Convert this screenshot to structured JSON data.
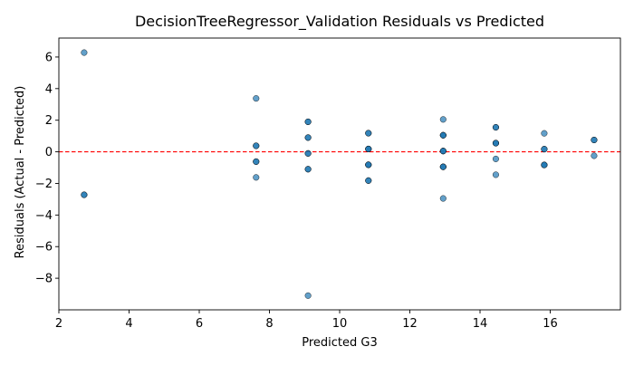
{
  "chart_data": {
    "type": "scatter",
    "title": "DecisionTreeRegressor_Validation Residuals vs Predicted",
    "xlabel": "Predicted G3",
    "ylabel": "Residuals (Actual - Predicted)",
    "xlim": [
      2.0,
      18.0
    ],
    "ylim": [
      -10.0,
      7.2
    ],
    "xticks": [
      2,
      4,
      6,
      8,
      10,
      12,
      14,
      16
    ],
    "yticks": [
      6,
      4,
      2,
      0,
      -2,
      -4,
      -6,
      -8
    ],
    "xtick_labels": [
      "2",
      "4",
      "6",
      "8",
      "10",
      "12",
      "14",
      "16"
    ],
    "ytick_labels": [
      "6",
      "4",
      "2",
      "0",
      "−2",
      "−4",
      "−6",
      "−8"
    ],
    "reference_line": {
      "y": 0,
      "color": "#ff0000",
      "style": "dashed"
    },
    "point_color": "#1f77b4",
    "grid": false,
    "points": [
      {
        "x": 2.72,
        "y": 6.28
      },
      {
        "x": 2.72,
        "y": -2.72
      },
      {
        "x": 2.72,
        "y": -2.72
      },
      {
        "x": 7.62,
        "y": 3.38
      },
      {
        "x": 7.62,
        "y": 0.38
      },
      {
        "x": 7.62,
        "y": 0.38
      },
      {
        "x": 7.62,
        "y": -0.62
      },
      {
        "x": 7.62,
        "y": -0.62
      },
      {
        "x": 7.62,
        "y": -1.62
      },
      {
        "x": 9.1,
        "y": 1.9
      },
      {
        "x": 9.1,
        "y": 1.9
      },
      {
        "x": 9.1,
        "y": 0.9
      },
      {
        "x": 9.1,
        "y": 0.9
      },
      {
        "x": 9.1,
        "y": -0.1
      },
      {
        "x": 9.1,
        "y": -0.1
      },
      {
        "x": 9.1,
        "y": -1.1
      },
      {
        "x": 9.1,
        "y": -1.1
      },
      {
        "x": 9.1,
        "y": -9.1
      },
      {
        "x": 10.82,
        "y": 1.18
      },
      {
        "x": 10.82,
        "y": 1.18
      },
      {
        "x": 10.82,
        "y": 0.18
      },
      {
        "x": 10.82,
        "y": 0.18
      },
      {
        "x": 10.82,
        "y": 0.18
      },
      {
        "x": 10.82,
        "y": -0.82
      },
      {
        "x": 10.82,
        "y": -0.82
      },
      {
        "x": 10.82,
        "y": -0.82
      },
      {
        "x": 10.82,
        "y": -1.82
      },
      {
        "x": 10.82,
        "y": -1.82
      },
      {
        "x": 12.95,
        "y": 2.05
      },
      {
        "x": 12.95,
        "y": 1.05
      },
      {
        "x": 12.95,
        "y": 1.05
      },
      {
        "x": 12.95,
        "y": 1.05
      },
      {
        "x": 12.95,
        "y": 0.05
      },
      {
        "x": 12.95,
        "y": 0.05
      },
      {
        "x": 12.95,
        "y": 0.05
      },
      {
        "x": 12.95,
        "y": -0.95
      },
      {
        "x": 12.95,
        "y": -0.95
      },
      {
        "x": 12.95,
        "y": -0.95
      },
      {
        "x": 12.95,
        "y": -2.95
      },
      {
        "x": 14.45,
        "y": 1.55
      },
      {
        "x": 14.45,
        "y": 1.55
      },
      {
        "x": 14.45,
        "y": 0.55
      },
      {
        "x": 14.45,
        "y": 0.55
      },
      {
        "x": 14.45,
        "y": 0.55
      },
      {
        "x": 14.45,
        "y": -0.45
      },
      {
        "x": 14.45,
        "y": -1.45
      },
      {
        "x": 15.83,
        "y": 1.17
      },
      {
        "x": 15.83,
        "y": 0.17
      },
      {
        "x": 15.83,
        "y": 0.17
      },
      {
        "x": 15.83,
        "y": -0.83
      },
      {
        "x": 15.83,
        "y": -0.83
      },
      {
        "x": 15.83,
        "y": -0.83
      },
      {
        "x": 17.25,
        "y": 0.75
      },
      {
        "x": 17.25,
        "y": 0.75
      },
      {
        "x": 17.25,
        "y": -0.25
      }
    ]
  }
}
